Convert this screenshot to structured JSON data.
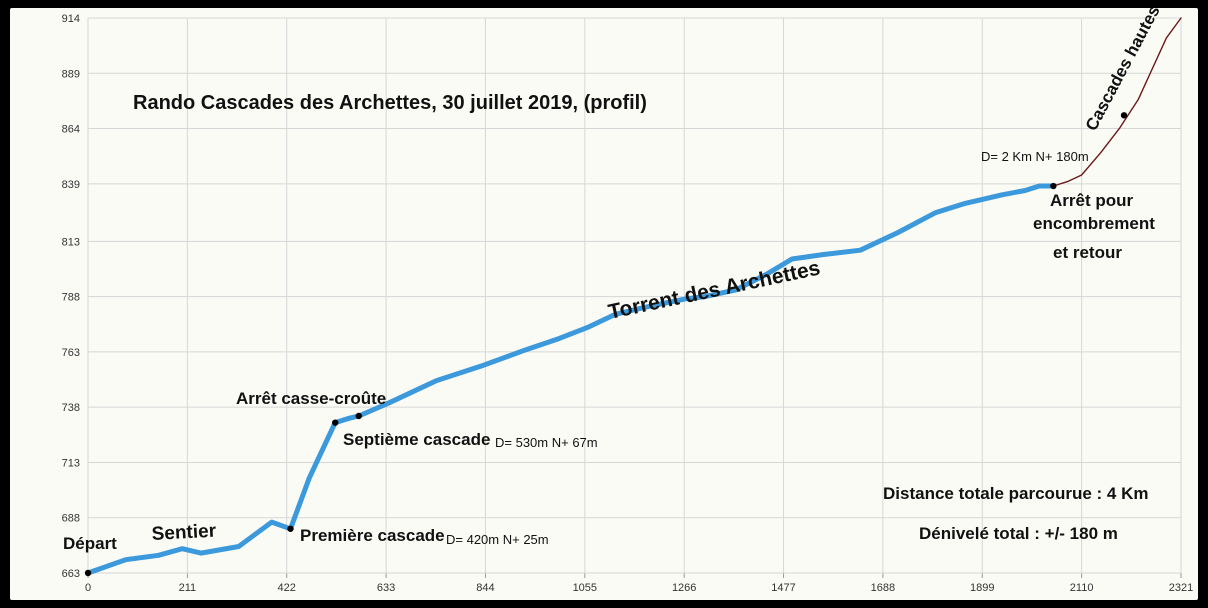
{
  "chart_data": {
    "type": "line",
    "title": "Rando Cascades des Archettes, 30 juillet 2019, (profil)",
    "xlabel": "",
    "ylabel": "",
    "xlim": [
      0,
      2321
    ],
    "ylim": [
      663,
      914
    ],
    "x_ticks": [
      0,
      211,
      422,
      633,
      844,
      1055,
      1266,
      1477,
      1688,
      1899,
      2110,
      2321
    ],
    "y_ticks": [
      663,
      688,
      713,
      738,
      763,
      788,
      813,
      839,
      864,
      889,
      914
    ],
    "grid": true,
    "series": [
      {
        "name": "",
        "color": "#3b99dc",
        "x": [
          0,
          80,
          150,
          200,
          240,
          320,
          390,
          430,
          470,
          525,
          555,
          575,
          640,
          740,
          840,
          930,
          1000,
          1060,
          1120,
          1200,
          1270,
          1310,
          1375,
          1440,
          1495,
          1560,
          1640,
          1720,
          1800,
          1860,
          1940,
          1990,
          2020,
          2050
        ],
        "y": [
          663,
          669,
          671,
          674,
          672,
          675,
          686,
          683,
          706,
          731,
          733,
          734,
          740,
          750,
          757,
          764,
          769,
          774,
          780,
          784,
          787,
          788,
          791,
          798,
          805,
          807,
          809,
          817,
          826,
          830,
          834,
          836,
          838,
          838
        ]
      },
      {
        "name": "",
        "color": "#6a1a1a",
        "x": [
          2050,
          2080,
          2110,
          2150,
          2190,
          2230,
          2290,
          2321
        ],
        "y": [
          838,
          840,
          843,
          853,
          864,
          877,
          905,
          914
        ]
      }
    ],
    "points": [
      {
        "x": 0,
        "y": 663
      },
      {
        "x": 430,
        "y": 683
      },
      {
        "x": 525,
        "y": 731
      },
      {
        "x": 575,
        "y": 734
      },
      {
        "x": 2050,
        "y": 838
      },
      {
        "x": 2200,
        "y": 870
      }
    ],
    "annotations": {
      "depart": "Départ",
      "sentier": "Sentier",
      "premiere": "Première cascade",
      "d1": "D= 420m  N+ 25m",
      "arret_cc": "Arrêt casse-croûte",
      "septieme": "Septième cascade",
      "d2": "D= 530m  N+ 67m",
      "torrent": "Torrent des Archettes",
      "d3": "D= 2 Km  N+ 180m",
      "arret1": "Arrêt pour",
      "arret2": "encombrement",
      "arret3": "et retour",
      "cascades_hautes": "Cascades hautes",
      "distance": "Distance totale parcourue : 4 Km",
      "denivele": "Dénivelé total : +/- 180 m"
    }
  }
}
